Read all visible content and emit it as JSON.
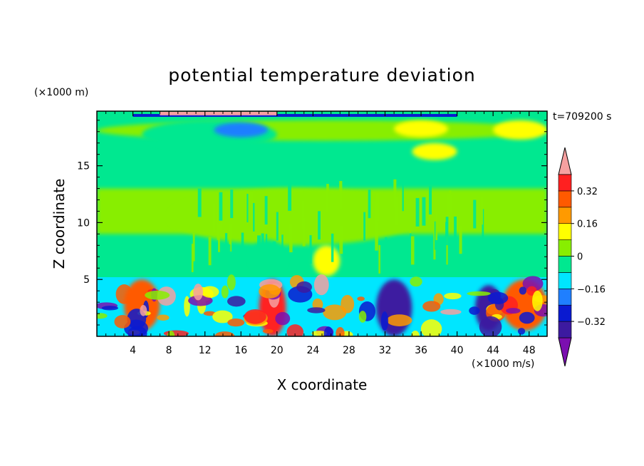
{
  "chart_data": {
    "type": "heatmap",
    "title": "potential temperature deviation",
    "time_label": "t=709200 s",
    "xlabel": "X coordinate",
    "ylabel": "Z coordinate",
    "x_unit": "(×1000 m/s)",
    "y_unit": "(×1000 m)",
    "xlim": [
      0,
      50
    ],
    "ylim": [
      0,
      19.8
    ],
    "x_ticks": [
      4,
      8,
      12,
      16,
      20,
      24,
      28,
      32,
      36,
      40,
      44,
      48
    ],
    "y_ticks": [
      5,
      10,
      15
    ],
    "colorbar": {
      "levels": [
        -0.4,
        -0.32,
        -0.24,
        -0.16,
        -0.08,
        0,
        0.08,
        0.16,
        0.24,
        0.32,
        0.4
      ],
      "tick_labels": [
        "0.32",
        "0.16",
        "0",
        "−0.16",
        "−0.32"
      ],
      "tick_values": [
        0.32,
        0.16,
        0,
        -0.16,
        -0.32
      ],
      "colors": [
        "#7b0fb0",
        "#3c1aa0",
        "#0a1ad0",
        "#1f7fff",
        "#00e6ff",
        "#00e890",
        "#88ee00",
        "#ffff00",
        "#ff9a00",
        "#ff5a00",
        "#ff2020",
        "#f6a0a0"
      ]
    },
    "regions": [
      {
        "x": [
          0,
          50
        ],
        "z": [
          17.2,
          19.0
        ],
        "level": "0 to 0.08"
      },
      {
        "x": [
          5,
          20
        ],
        "z": [
          16.5,
          19.0
        ],
        "level": "-0.08 to 0"
      },
      {
        "x": [
          13,
          19
        ],
        "z": [
          17.5,
          18.8
        ],
        "level": "-0.24 to -0.16"
      },
      {
        "x": [
          33,
          39
        ],
        "z": [
          17.5,
          19.0
        ],
        "level": "0.08 to 0.16"
      },
      {
        "x": [
          44,
          50
        ],
        "z": [
          17.3,
          19.0
        ],
        "level": "0.08 to 0.16"
      },
      {
        "x": [
          35,
          40
        ],
        "z": [
          15.5,
          17.0
        ],
        "level": "0.08 to 0.16"
      },
      {
        "x": [
          8,
          36
        ],
        "z": [
          8.0,
          13.0
        ],
        "level": "0 to 0.08"
      },
      {
        "x": [
          24,
          27
        ],
        "z": [
          5.3,
          8.0
        ],
        "level": "0.08 to 0.16"
      },
      {
        "x": [
          17,
          21
        ],
        "z": [
          5.5,
          8.5
        ],
        "level": "-0.08 to 0"
      },
      {
        "x": [
          3,
          7
        ],
        "z": [
          0.5,
          5.0
        ],
        "level": "0.24 to 0.32"
      },
      {
        "x": [
          18,
          21
        ],
        "z": [
          0.0,
          5.0
        ],
        "level": "0.32 to 0.4"
      },
      {
        "x": [
          31,
          35
        ],
        "z": [
          0.0,
          5.0
        ],
        "level": "-0.4 to -0.32"
      },
      {
        "x": [
          42,
          45
        ],
        "z": [
          0.5,
          4.5
        ],
        "level": "-0.4 to -0.32"
      },
      {
        "x": [
          45,
          50
        ],
        "z": [
          0.5,
          5.0
        ],
        "level": "0.24 to 0.32"
      }
    ]
  }
}
